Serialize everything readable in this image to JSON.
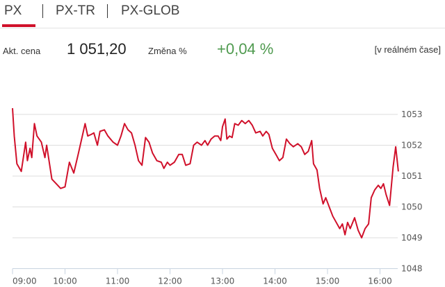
{
  "tabs": [
    {
      "label": "PX",
      "active": true
    },
    {
      "label": "PX-TR",
      "active": false
    },
    {
      "label": "PX-GLOB",
      "active": false
    }
  ],
  "info": {
    "price_label": "Akt. cena",
    "price_value": "1 051,20",
    "change_label": "Změna %",
    "change_value": "+0,04 %",
    "realtime_label": "[v reálném čase]"
  },
  "colors": {
    "accent": "#d0102a",
    "positive": "#4f9a4f",
    "line": "#d0102a",
    "grid": "#dddddd"
  },
  "chart_data": {
    "type": "line",
    "xlabel": "",
    "ylabel": "",
    "ylim": [
      1048,
      1053
    ],
    "yticks": [
      "1053",
      "1052",
      "1051",
      "1050",
      "1049",
      "1048"
    ],
    "xticks": [
      "09:00",
      "10:00",
      "11:00",
      "12:00",
      "13:00",
      "14:00",
      "15:00",
      "16:00"
    ],
    "y_axis_position": "right",
    "grid": true,
    "series": [
      {
        "points": [
          [
            "09:00",
            1053.2
          ],
          [
            "09:02",
            1052.3
          ],
          [
            "09:05",
            1051.4
          ],
          [
            "09:10",
            1051.15
          ],
          [
            "09:15",
            1052.1
          ],
          [
            "09:17",
            1051.5
          ],
          [
            "09:20",
            1051.9
          ],
          [
            "09:22",
            1051.6
          ],
          [
            "09:25",
            1052.7
          ],
          [
            "09:28",
            1052.3
          ],
          [
            "09:33",
            1052.1
          ],
          [
            "09:37",
            1051.6
          ],
          [
            "09:39",
            1052.0
          ],
          [
            "09:45",
            1050.9
          ],
          [
            "09:50",
            1050.75
          ],
          [
            "09:55",
            1050.6
          ],
          [
            "10:00",
            1050.65
          ],
          [
            "10:05",
            1051.45
          ],
          [
            "10:10",
            1051.1
          ],
          [
            "10:15",
            1051.7
          ],
          [
            "10:19",
            1052.2
          ],
          [
            "10:23",
            1052.7
          ],
          [
            "10:26",
            1052.3
          ],
          [
            "10:30",
            1052.35
          ],
          [
            "10:33",
            1052.4
          ],
          [
            "10:37",
            1052.0
          ],
          [
            "10:40",
            1052.45
          ],
          [
            "10:45",
            1052.5
          ],
          [
            "10:49",
            1052.3
          ],
          [
            "10:55",
            1052.1
          ],
          [
            "11:00",
            1052.0
          ],
          [
            "11:04",
            1052.3
          ],
          [
            "11:08",
            1052.7
          ],
          [
            "11:12",
            1052.5
          ],
          [
            "11:16",
            1052.4
          ],
          [
            "11:20",
            1052.0
          ],
          [
            "11:24",
            1051.5
          ],
          [
            "11:28",
            1051.35
          ],
          [
            "11:32",
            1052.25
          ],
          [
            "11:36",
            1052.1
          ],
          [
            "11:40",
            1051.75
          ],
          [
            "11:45",
            1051.5
          ],
          [
            "11:50",
            1051.45
          ],
          [
            "11:53",
            1051.25
          ],
          [
            "11:57",
            1051.45
          ],
          [
            "12:00",
            1051.35
          ],
          [
            "12:05",
            1051.45
          ],
          [
            "12:10",
            1051.7
          ],
          [
            "12:14",
            1051.7
          ],
          [
            "12:18",
            1051.35
          ],
          [
            "12:23",
            1051.4
          ],
          [
            "12:27",
            1052.0
          ],
          [
            "12:31",
            1052.1
          ],
          [
            "12:36",
            1052.0
          ],
          [
            "12:40",
            1052.15
          ],
          [
            "12:43",
            1052.0
          ],
          [
            "12:47",
            1052.2
          ],
          [
            "12:51",
            1052.3
          ],
          [
            "12:55",
            1052.3
          ],
          [
            "12:58",
            1052.15
          ],
          [
            "13:00",
            1052.6
          ],
          [
            "13:03",
            1052.85
          ],
          [
            "13:05",
            1052.2
          ],
          [
            "13:08",
            1052.3
          ],
          [
            "13:11",
            1052.25
          ],
          [
            "13:14",
            1052.7
          ],
          [
            "13:18",
            1052.65
          ],
          [
            "13:22",
            1052.8
          ],
          [
            "13:26",
            1052.7
          ],
          [
            "13:30",
            1052.8
          ],
          [
            "13:34",
            1052.65
          ],
          [
            "13:38",
            1052.4
          ],
          [
            "13:43",
            1052.45
          ],
          [
            "13:46",
            1052.3
          ],
          [
            "13:50",
            1052.45
          ],
          [
            "13:53",
            1052.35
          ],
          [
            "13:57",
            1051.9
          ],
          [
            "14:01",
            1051.7
          ],
          [
            "14:05",
            1051.5
          ],
          [
            "14:09",
            1051.6
          ],
          [
            "14:13",
            1052.2
          ],
          [
            "14:17",
            1052.05
          ],
          [
            "14:21",
            1051.95
          ],
          [
            "14:26",
            1052.05
          ],
          [
            "14:30",
            1051.95
          ],
          [
            "14:34",
            1051.7
          ],
          [
            "14:38",
            1051.8
          ],
          [
            "14:42",
            1052.15
          ],
          [
            "14:44",
            1051.4
          ],
          [
            "14:48",
            1051.2
          ],
          [
            "14:51",
            1050.6
          ],
          [
            "14:55",
            1050.1
          ],
          [
            "14:58",
            1050.3
          ],
          [
            "15:02",
            1050.0
          ],
          [
            "15:06",
            1049.7
          ],
          [
            "15:10",
            1049.5
          ],
          [
            "15:14",
            1049.3
          ],
          [
            "15:17",
            1049.45
          ],
          [
            "15:20",
            1049.1
          ],
          [
            "15:23",
            1049.5
          ],
          [
            "15:26",
            1049.3
          ],
          [
            "15:31",
            1049.65
          ],
          [
            "15:35",
            1049.25
          ],
          [
            "15:39",
            1049.0
          ],
          [
            "15:43",
            1049.3
          ],
          [
            "15:47",
            1049.45
          ],
          [
            "15:50",
            1050.3
          ],
          [
            "15:54",
            1050.55
          ],
          [
            "15:58",
            1050.7
          ],
          [
            "16:01",
            1050.6
          ],
          [
            "16:04",
            1050.75
          ],
          [
            "16:07",
            1050.4
          ],
          [
            "16:11",
            1050.05
          ],
          [
            "16:15",
            1051.3
          ],
          [
            "16:18",
            1051.95
          ],
          [
            "16:21",
            1051.15
          ]
        ]
      }
    ]
  }
}
